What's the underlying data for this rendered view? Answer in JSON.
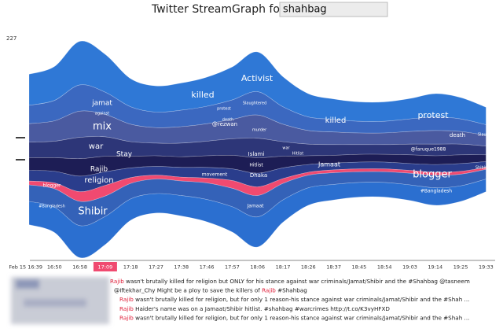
{
  "header": {
    "title": "Twitter StreamGraph for",
    "search": "shahbag"
  },
  "chart_data": {
    "type": "streamgraph",
    "categories": [
      "Feb 15 16:39",
      "16:50",
      "16:58",
      "17:09",
      "17:18",
      "17:27",
      "17:38",
      "17:46",
      "17:57",
      "18:06",
      "18:17",
      "18:26",
      "18:37",
      "18:45",
      "18:54",
      "19:03",
      "19:14",
      "19:25",
      "19:33"
    ],
    "selected_index": 3,
    "ylim": [
      0,
      227
    ],
    "yticks": [
      227
    ],
    "series": [
      {
        "color": "#2f78d6",
        "values": [
          32,
          35,
          45,
          39,
          29,
          27,
          28,
          30,
          34,
          41,
          31,
          24,
          21,
          20,
          20,
          21,
          24,
          22,
          18
        ]
      },
      {
        "color": "#3b68c0",
        "values": [
          19,
          21,
          27,
          23,
          18,
          16,
          17,
          18,
          20,
          24,
          18,
          14,
          13,
          12,
          12,
          13,
          14,
          13,
          11
        ]
      },
      {
        "color": "#4a5aa0",
        "values": [
          19,
          21,
          27,
          23,
          18,
          16,
          17,
          18,
          20,
          24,
          18,
          14,
          13,
          12,
          12,
          13,
          14,
          13,
          11
        ]
      },
      {
        "color": "#2d3678",
        "values": [
          16,
          17,
          22,
          20,
          15,
          13,
          14,
          15,
          17,
          20,
          15,
          12,
          11,
          10,
          10,
          11,
          12,
          11,
          9
        ]
      },
      {
        "color": "#1d1d55",
        "values": [
          13,
          14,
          18,
          16,
          12,
          11,
          11,
          12,
          14,
          16,
          12,
          9,
          8,
          8,
          8,
          9,
          9,
          9,
          7
        ]
      },
      {
        "color": "#2a3d8c",
        "values": [
          11,
          12,
          16,
          14,
          10,
          9,
          10,
          11,
          12,
          14,
          11,
          8,
          7,
          7,
          7,
          7,
          8,
          8,
          6
        ]
      },
      {
        "color": "#f04a70",
        "values": [
          4,
          6,
          10,
          11,
          6,
          4,
          4,
          5,
          8,
          9,
          5,
          3,
          3,
          3,
          3,
          3,
          3,
          3,
          2
        ]
      },
      {
        "color": "#3462b8",
        "values": [
          17,
          19,
          25,
          21,
          16,
          15,
          15,
          17,
          19,
          22,
          17,
          13,
          12,
          11,
          11,
          12,
          13,
          12,
          10
        ]
      },
      {
        "color": "#2b6fd0",
        "values": [
          24,
          26,
          33,
          29,
          22,
          20,
          21,
          23,
          26,
          31,
          23,
          18,
          16,
          15,
          15,
          16,
          18,
          16,
          13
        ]
      }
    ],
    "annotations": [
      "Activist",
      "killed",
      "jamat",
      "against",
      "mix",
      "war",
      "Stay",
      "Rajib",
      "religion",
      "blogger",
      "#Bangladesh",
      "Shibir",
      "protest",
      "Slaughtered",
      "death",
      "@rezwan",
      "murder",
      "Islami",
      "Hitlist",
      "Dhaka",
      "movement",
      "Jamaat",
      "killed",
      "protest",
      "death",
      "Slaughter",
      "@faruque1988",
      "Jamaat",
      "blogger",
      "#Bangladesh",
      "Shibir",
      "war",
      "Hitlist"
    ]
  },
  "tweets": [
    {
      "match": "Rajib",
      "after": " wasn't brutally killed for religion but ONLY for his stance against war criminals/Jamat/Shibir and the #Shahbag @tasneem"
    },
    {
      "before": "@Iftekhar_Chy Might be a ploy to save the killers of ",
      "match": "Rajib",
      "after": " #Shahbag"
    },
    {
      "match": "Rajib",
      "after": " wasn't brutally killed for religion, but for only 1 reason-his stance against war criminals/Jamat/Shibir and the #Shah ..."
    },
    {
      "match": "Rajib",
      "after": " Haider's name was on a Jamaat/Shibir hitlist. #shahbag #warcrimes http://t.co/K3vyHFXD"
    },
    {
      "match": "Rajib",
      "after": " wasn't brutally killed for religion, but for only 1 reason-his stance against war criminals/Jamat/Shibir and the #Shah ..."
    }
  ]
}
